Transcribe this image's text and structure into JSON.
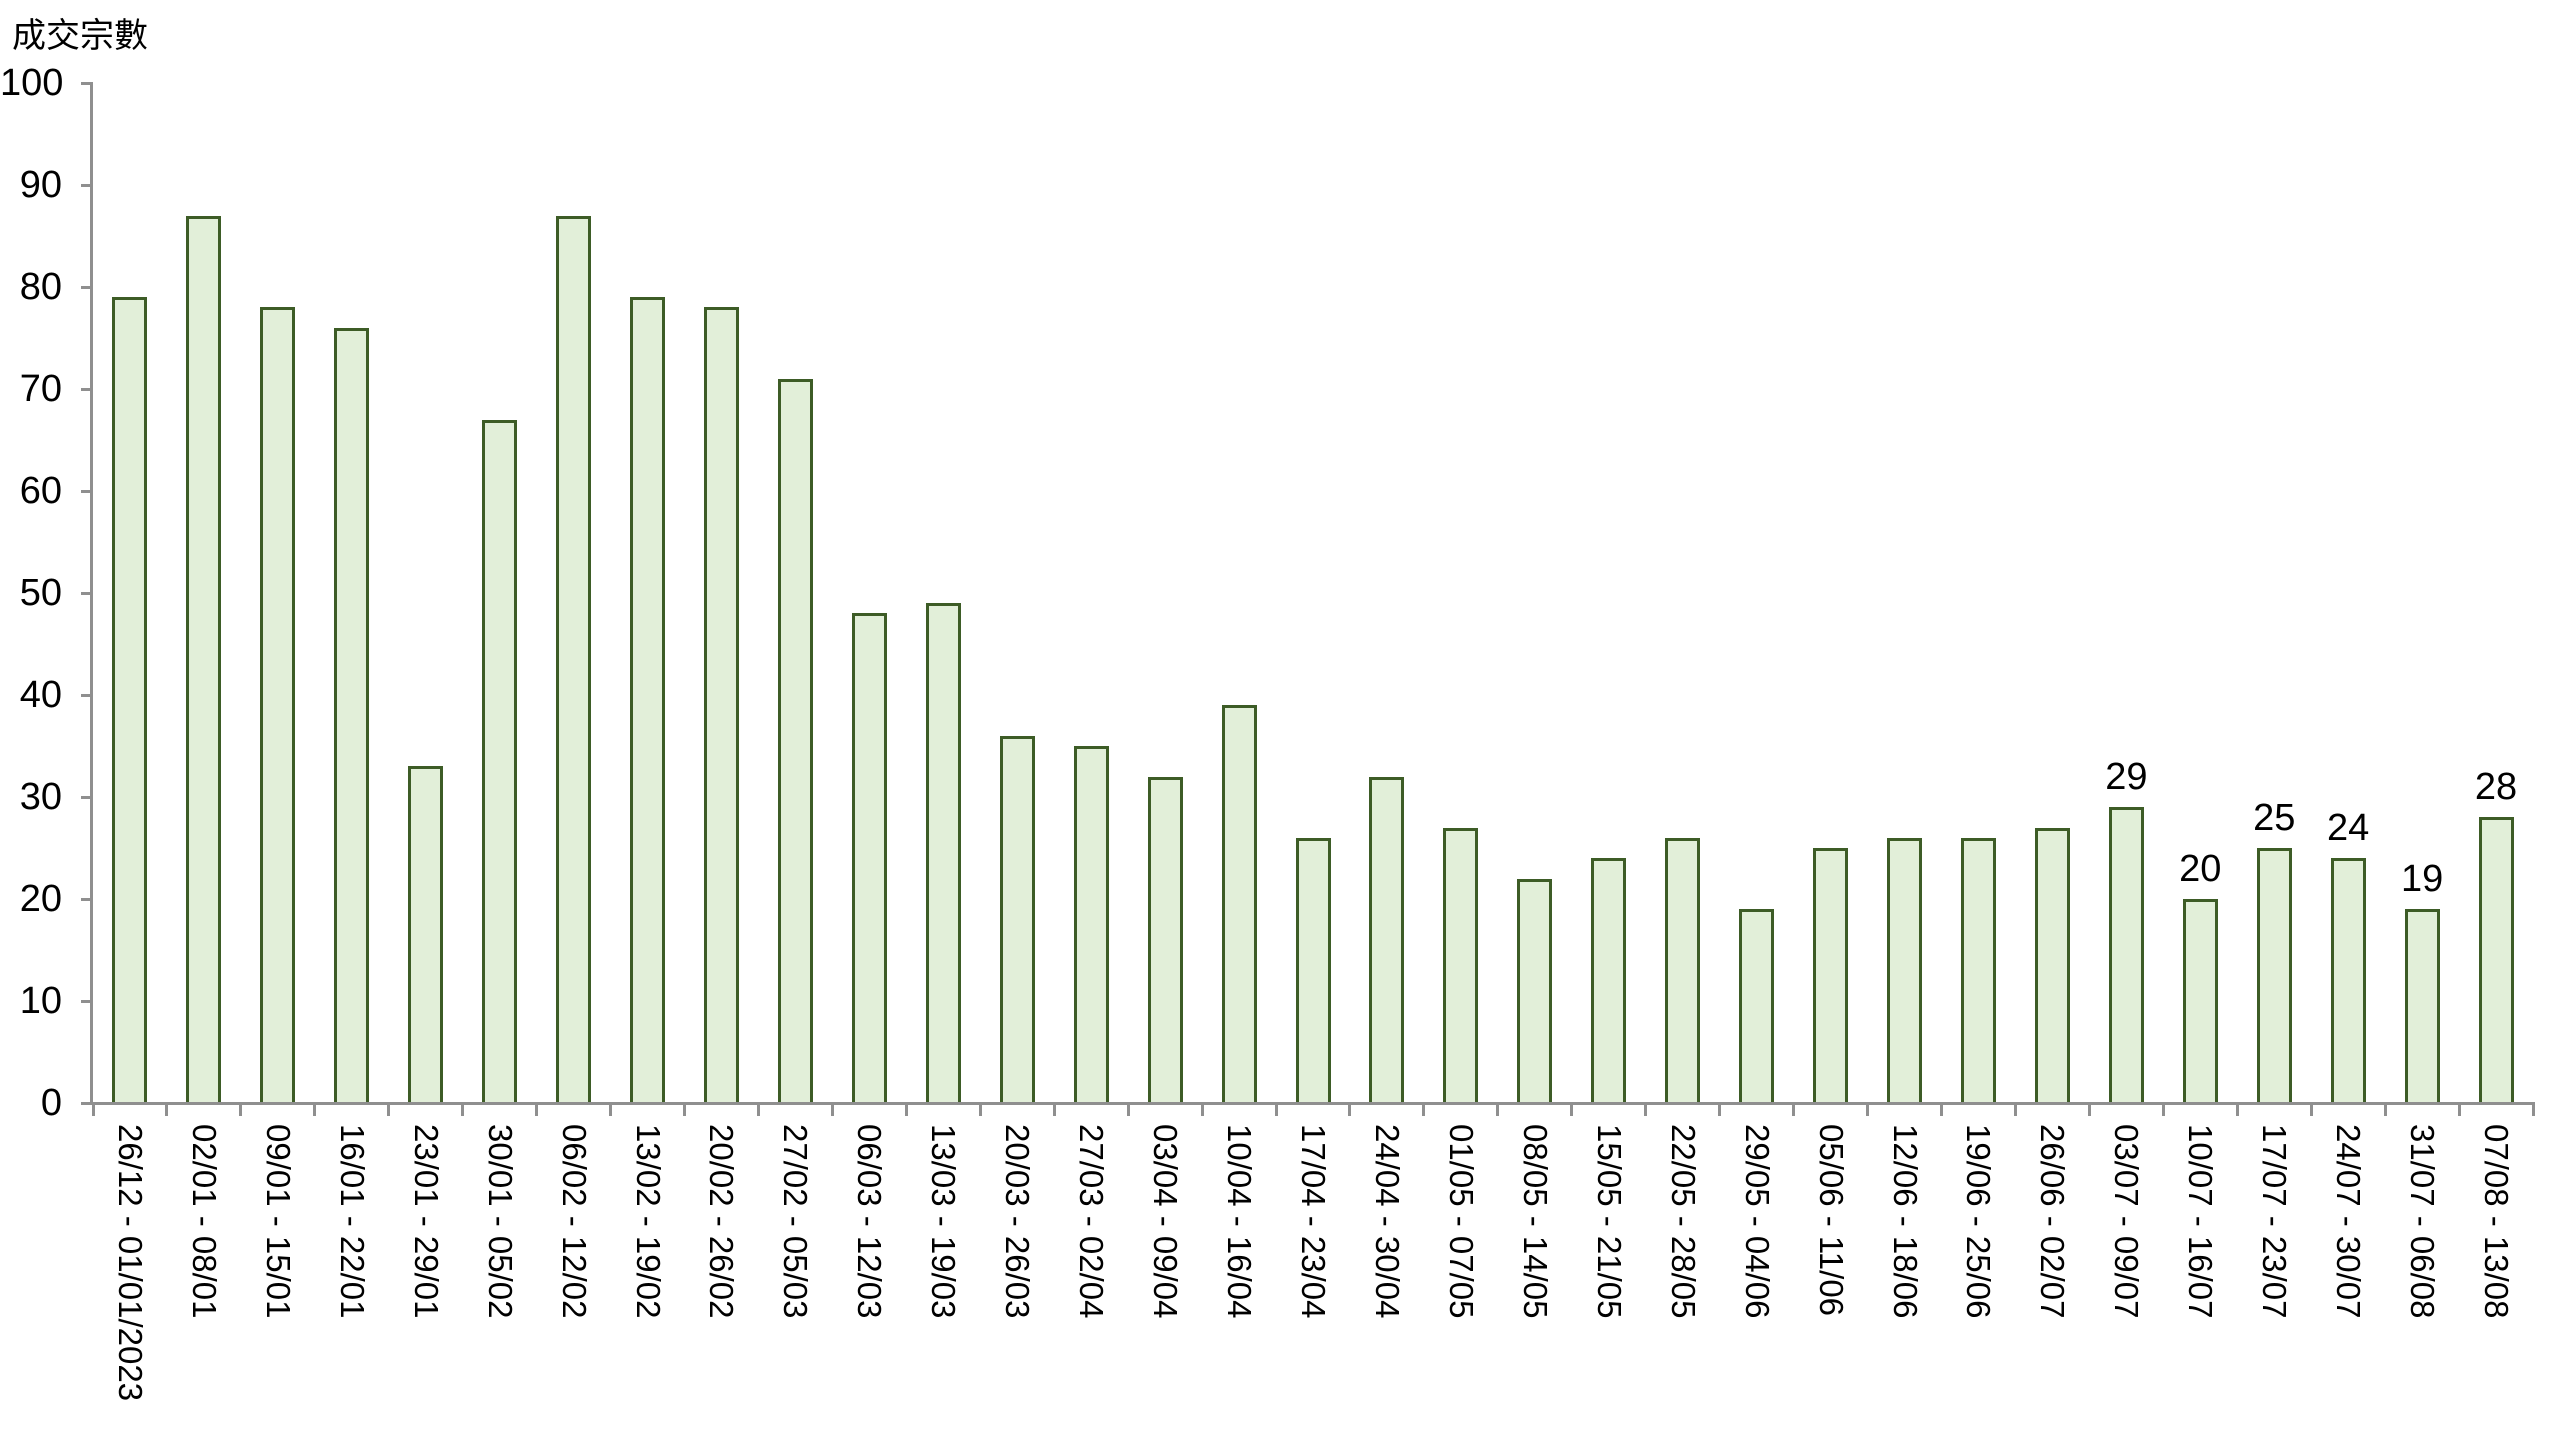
{
  "chart_data": {
    "type": "bar",
    "title": "成交宗數",
    "categories": [
      "26/12 - 01/01/2023",
      "02/01 - 08/01",
      "09/01 - 15/01",
      "16/01 - 22/01",
      "23/01 - 29/01",
      "30/01 - 05/02",
      "06/02 - 12/02",
      "13/02 - 19/02",
      "20/02 - 26/02",
      "27/02 - 05/03",
      "06/03 - 12/03",
      "13/03 - 19/03",
      "20/03 - 26/03",
      "27/03 - 02/04",
      "03/04 - 09/04",
      "10/04 - 16/04",
      "17/04 - 23/04",
      "24/04 - 30/04",
      "01/05 - 07/05",
      "08/05 - 14/05",
      "15/05 - 21/05",
      "22/05 - 28/05",
      "29/05 - 04/06",
      "05/06 - 11/06",
      "12/06 - 18/06",
      "19/06 - 25/06",
      "26/06 - 02/07",
      "03/07 - 09/07",
      "10/07 - 16/07",
      "17/07 - 23/07",
      "24/07 - 30/07",
      "31/07 - 06/08",
      "07/08 - 13/08"
    ],
    "values": [
      79,
      87,
      78,
      76,
      33,
      67,
      87,
      79,
      78,
      71,
      48,
      49,
      36,
      35,
      32,
      39,
      26,
      32,
      27,
      22,
      24,
      26,
      19,
      25,
      26,
      26,
      27,
      29,
      20,
      25,
      24,
      19,
      28
    ],
    "value_labels_visible_from_index": 27,
    "visible_value_labels": [
      {
        "category": "03/07 - 09/07",
        "value": 29
      },
      {
        "category": "10/07 - 16/07",
        "value": 20
      },
      {
        "category": "17/07 - 23/07",
        "value": 25
      },
      {
        "category": "24/07 - 30/07",
        "value": 24
      },
      {
        "category": "31/07 - 06/08",
        "value": 19
      },
      {
        "category": "07/08 - 13/08",
        "value": 28
      }
    ],
    "xlabel": "",
    "ylabel": "成交宗數",
    "ylim": [
      0,
      100
    ],
    "yticks": [
      0,
      10,
      20,
      30,
      40,
      50,
      60,
      70,
      80,
      90,
      100
    ],
    "grid": false,
    "legend": false,
    "x_label_rotation_deg": 90,
    "colors": {
      "bar_fill": "#e2efd9",
      "bar_border": "#3d5c26",
      "axis": "#8f8f8f",
      "text": "#000000"
    }
  }
}
